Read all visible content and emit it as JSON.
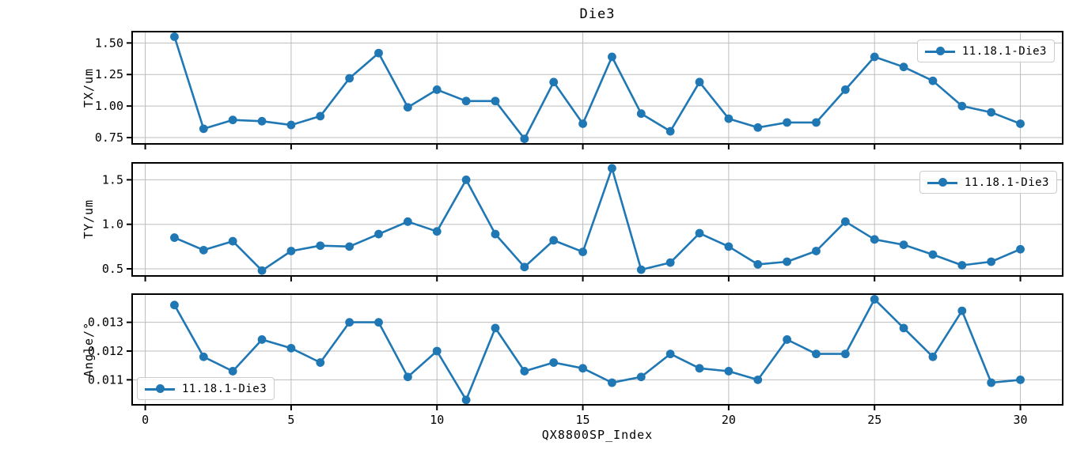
{
  "figure": {
    "title": "Die3",
    "xlabel": "QX8800SP_Index",
    "colors": {
      "series": "#1f77b4",
      "grid": "#bdbdbd",
      "spine": "#000000",
      "text": "#000000",
      "legend_border": "#cccccc"
    }
  },
  "x_axis": {
    "label": "QX8800SP_Index",
    "ticks": [
      0,
      5,
      10,
      15,
      20,
      25,
      30
    ],
    "tick_labels": [
      "0",
      "5",
      "10",
      "15",
      "20",
      "25",
      "30"
    ],
    "xlim": [
      -0.45,
      31.45
    ]
  },
  "chart_data": [
    {
      "type": "line",
      "id": "tx",
      "ylabel": "TX/um",
      "legend_label": "11.18.1-Die3",
      "legend_position": "upper right",
      "marker": "circle",
      "grid": true,
      "ylim": [
        0.7,
        1.59
      ],
      "ytick_values": [
        0.75,
        1.0,
        1.25,
        1.5
      ],
      "ytick_labels": [
        "0.75",
        "1.00",
        "1.25",
        "1.50"
      ],
      "x": [
        1,
        2,
        3,
        4,
        5,
        6,
        7,
        8,
        9,
        10,
        11,
        12,
        13,
        14,
        15,
        16,
        17,
        18,
        19,
        20,
        21,
        22,
        23,
        24,
        25,
        26,
        27,
        28,
        29,
        30
      ],
      "values": [
        1.55,
        0.82,
        0.89,
        0.88,
        0.85,
        0.92,
        1.22,
        1.42,
        0.99,
        1.13,
        1.04,
        1.04,
        0.74,
        1.19,
        0.86,
        1.39,
        0.94,
        0.8,
        1.19,
        0.9,
        0.83,
        0.87,
        0.87,
        1.13,
        1.39,
        1.31,
        1.2,
        1.0,
        0.95,
        0.86
      ]
    },
    {
      "type": "line",
      "id": "ty",
      "ylabel": "TY/um",
      "legend_label": "11.18.1-Die3",
      "legend_position": "upper right",
      "marker": "circle",
      "grid": true,
      "ylim": [
        0.42,
        1.69
      ],
      "ytick_values": [
        0.5,
        1.0,
        1.5
      ],
      "ytick_labels": [
        "0.5",
        "1.0",
        "1.5"
      ],
      "x": [
        1,
        2,
        3,
        4,
        5,
        6,
        7,
        8,
        9,
        10,
        11,
        12,
        13,
        14,
        15,
        16,
        17,
        18,
        19,
        20,
        21,
        22,
        23,
        24,
        25,
        26,
        27,
        28,
        29,
        30
      ],
      "values": [
        0.85,
        0.71,
        0.81,
        0.48,
        0.7,
        0.76,
        0.75,
        0.89,
        1.03,
        0.92,
        1.5,
        0.89,
        0.52,
        0.82,
        0.69,
        1.63,
        0.49,
        0.57,
        0.9,
        0.75,
        0.55,
        0.58,
        0.7,
        1.03,
        0.83,
        0.77,
        0.66,
        0.54,
        0.58,
        0.72
      ]
    },
    {
      "type": "line",
      "id": "angle",
      "ylabel": "Angle/°",
      "legend_label": "11.18.1-Die3",
      "legend_position": "lower left",
      "marker": "circle",
      "grid": true,
      "ylim": [
        0.01013,
        0.01398
      ],
      "ytick_values": [
        0.011,
        0.012,
        0.013
      ],
      "ytick_labels": [
        "0.011",
        "0.012",
        "0.013"
      ],
      "x": [
        1,
        2,
        3,
        4,
        5,
        6,
        7,
        8,
        9,
        10,
        11,
        12,
        13,
        14,
        15,
        16,
        17,
        18,
        19,
        20,
        21,
        22,
        23,
        24,
        25,
        26,
        27,
        28,
        29,
        30
      ],
      "values": [
        0.0136,
        0.0118,
        0.0113,
        0.0124,
        0.0121,
        0.0116,
        0.013,
        0.013,
        0.0111,
        0.012,
        0.0103,
        0.0128,
        0.0113,
        0.0116,
        0.0114,
        0.0109,
        0.0111,
        0.0119,
        0.0114,
        0.0113,
        0.011,
        0.0124,
        0.0119,
        0.0119,
        0.0138,
        0.0128,
        0.0118,
        0.0134,
        0.0109,
        0.011
      ]
    }
  ]
}
